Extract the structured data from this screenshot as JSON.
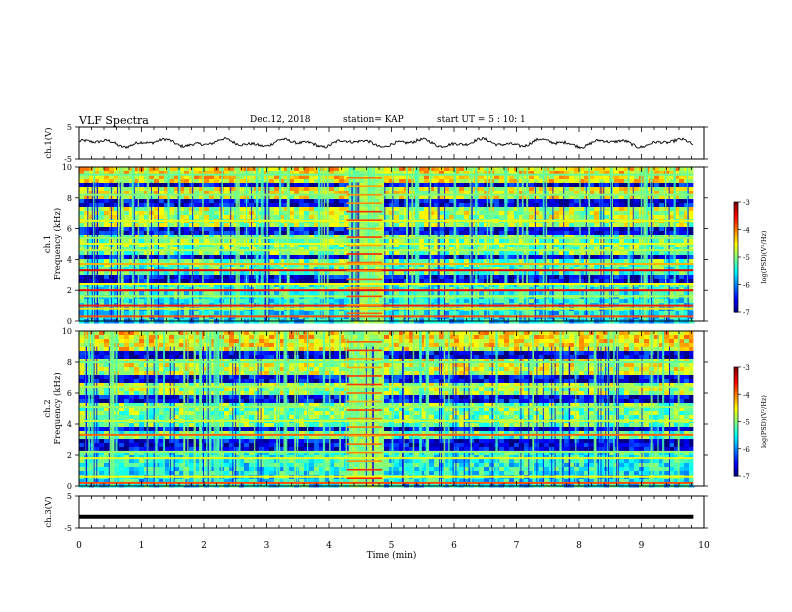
{
  "header": {
    "title": "VLF Spectra",
    "date": "Dec.12, 2018",
    "station": "station= KAP",
    "start_ut": "start  UT =   5 : 10: 1"
  },
  "chart_data": [
    {
      "type": "line",
      "panel": "ch1-waveform",
      "ylabel": "ch.1(V)",
      "ylim": [
        -5,
        5
      ],
      "yticks": [
        5,
        -5
      ],
      "xlim": [
        0,
        10
      ],
      "data_end_x": 9.83,
      "mean_y": 0.0,
      "amplitude_y": 1.5,
      "color": "#000000"
    },
    {
      "type": "heatmap",
      "panel": "ch1-spectrogram",
      "ylabel": "ch.1\nFrequency (kHz)",
      "ylim": [
        0,
        10
      ],
      "yticks": [
        "0",
        "2",
        "4",
        "6",
        "8",
        "10"
      ],
      "xlim": [
        0,
        10
      ],
      "data_end_x": 9.83,
      "burst_x": [
        4.28,
        4.85
      ],
      "bands_khz": [
        {
          "f": 0.3,
          "level": -3.8
        },
        {
          "f": 0.8,
          "level": -4.4
        },
        {
          "f": 1.0,
          "level": -3.6
        },
        {
          "f": 1.6,
          "level": -4.8
        },
        {
          "f": 2.0,
          "level": -3.5
        },
        {
          "f": 2.4,
          "level": -4.5
        },
        {
          "f": 3.3,
          "level": -3.4
        },
        {
          "f": 3.7,
          "level": -4.2
        },
        {
          "f": 4.6,
          "level": -4.8
        },
        {
          "f": 5.0,
          "level": -4.6
        },
        {
          "f": 5.4,
          "level": -4.9
        },
        {
          "f": 6.5,
          "level": -4.6
        },
        {
          "f": 8.2,
          "level": -5.0
        },
        {
          "f": 9.5,
          "level": -5.1
        }
      ],
      "dark_bands_khz": [
        [
          2.6,
          3.2
        ],
        [
          4.1,
          4.4
        ],
        [
          5.8,
          6.3
        ],
        [
          7.6,
          8.0
        ],
        [
          8.8,
          9.2
        ]
      ],
      "colorbar": {
        "range": [
          -7,
          -3
        ],
        "ticks": [
          "-3",
          "-4",
          "-5",
          "-6",
          "-7"
        ],
        "label": "log(PSD)(V²/Hz)"
      }
    },
    {
      "type": "heatmap",
      "panel": "ch2-spectrogram",
      "ylabel": "ch.2\nFrequency (kHz)",
      "ylim": [
        0,
        10
      ],
      "yticks": [
        "0",
        "2",
        "4",
        "6",
        "8",
        "10"
      ],
      "xlim": [
        0,
        10
      ],
      "data_end_x": 9.83,
      "burst_x": [
        4.28,
        4.85
      ],
      "bands_khz": [
        {
          "f": 0.2,
          "level": -3.8
        },
        {
          "f": 0.6,
          "level": -4.5
        },
        {
          "f": 1.8,
          "level": -4.6
        },
        {
          "f": 2.2,
          "level": -4.9
        },
        {
          "f": 3.3,
          "level": -3.9
        },
        {
          "f": 4.2,
          "level": -4.7
        },
        {
          "f": 5.1,
          "level": -4.9
        },
        {
          "f": 6.4,
          "level": -4.8
        },
        {
          "f": 8.0,
          "level": -5.1
        }
      ],
      "dark_bands_khz": [
        [
          2.5,
          3.1
        ],
        [
          3.6,
          4.0
        ],
        [
          5.5,
          6.0
        ],
        [
          6.8,
          7.2
        ],
        [
          8.4,
          8.8
        ]
      ],
      "colorbar": {
        "range": [
          -7,
          -3
        ],
        "ticks": [
          "-3",
          "-4",
          "-5",
          "-6",
          "-7"
        ],
        "label": "log(PSD)(V²/Hz)"
      }
    },
    {
      "type": "line",
      "panel": "ch3-waveform",
      "ylabel": "ch.3(V)",
      "ylim": [
        -5,
        5
      ],
      "yticks": [
        5,
        -5
      ],
      "xlim": [
        0,
        10
      ],
      "data_end_x": 9.83,
      "mean_y": -1.5,
      "color": "#000000",
      "xlabel": "Time  (min)",
      "xticks": [
        "0",
        "1",
        "2",
        "3",
        "4",
        "5",
        "6",
        "7",
        "8",
        "9",
        "10"
      ]
    }
  ]
}
